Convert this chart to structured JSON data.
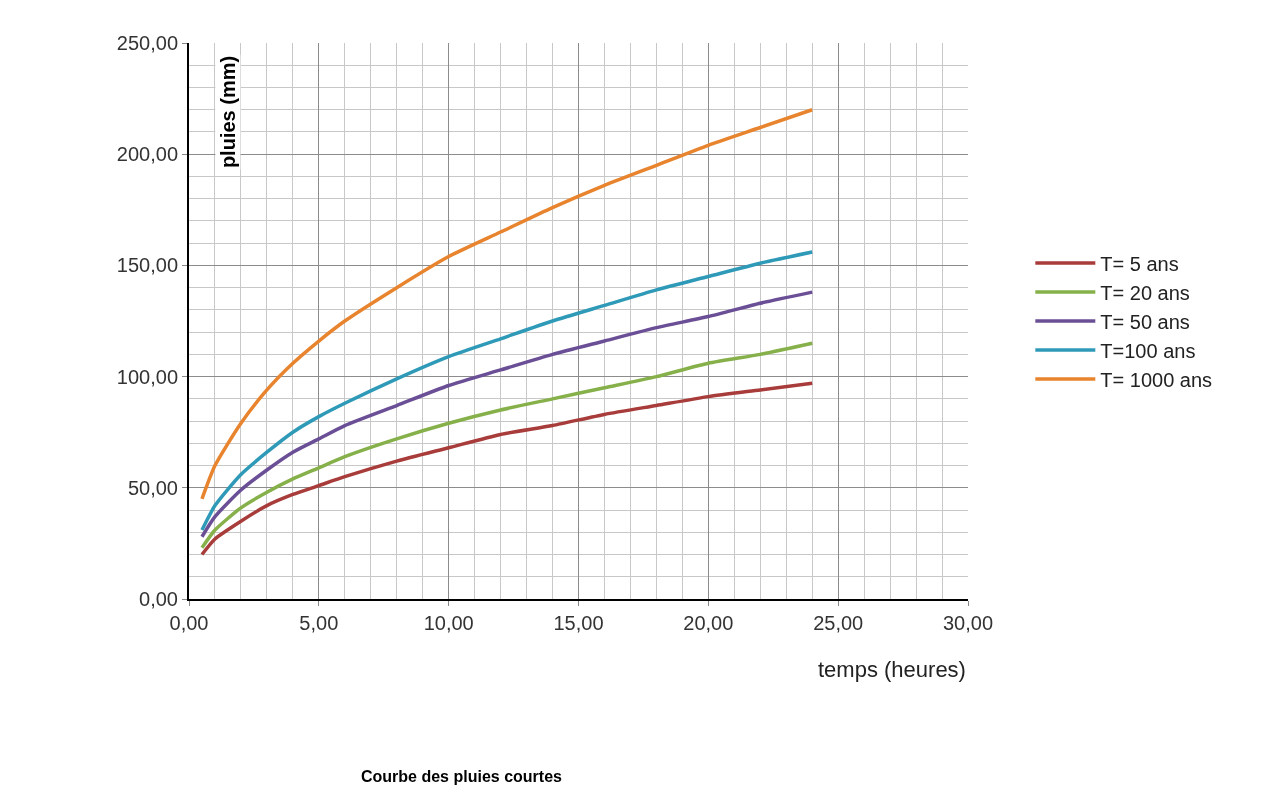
{
  "chart_data": {
    "type": "line",
    "title": "Courbe des pluies courtes",
    "xlabel": "temps (heures)",
    "ylabel": "pluies (mm)",
    "x": [
      0.5,
      1,
      2,
      3,
      4,
      5,
      6,
      8,
      10,
      12,
      14,
      16,
      18,
      20,
      22,
      24
    ],
    "series": [
      {
        "name": "T= 5 ans",
        "color": "#a83c3a",
        "values": [
          20,
          27,
          35,
          42,
          47,
          51,
          55,
          62,
          68,
          74,
          78,
          83,
          87,
          91,
          94,
          97
        ]
      },
      {
        "name": "T= 20 ans",
        "color": "#86b04a",
        "values": [
          23,
          31,
          41,
          48,
          54,
          59,
          64,
          72,
          79,
          85,
          90,
          95,
          100,
          106,
          110,
          115
        ]
      },
      {
        "name": "T= 50 ans",
        "color": "#6b4f96",
        "values": [
          28,
          37,
          49,
          58,
          66,
          72,
          78,
          87,
          96,
          103,
          110,
          116,
          122,
          127,
          133,
          138
        ]
      },
      {
        "name": "T=100 ans",
        "color": "#2f9ab8",
        "values": [
          31,
          42,
          56,
          66,
          75,
          82,
          88,
          99,
          109,
          117,
          125,
          132,
          139,
          145,
          151,
          156
        ]
      },
      {
        "name": "T= 1000 ans",
        "color": "#e8842e",
        "values": [
          45,
          60,
          79,
          94,
          106,
          116,
          125,
          140,
          154,
          165,
          176,
          186,
          195,
          204,
          212,
          220
        ]
      }
    ],
    "xlim": [
      0,
      30
    ],
    "xticks": [
      {
        "value": 0,
        "label": "0,00"
      },
      {
        "value": 5,
        "label": "5,00"
      },
      {
        "value": 10,
        "label": "10,00"
      },
      {
        "value": 15,
        "label": "15,00"
      },
      {
        "value": 20,
        "label": "20,00"
      },
      {
        "value": 25,
        "label": "25,00"
      },
      {
        "value": 30,
        "label": "30,00"
      }
    ],
    "ylim": [
      0,
      250
    ],
    "yticks": [
      {
        "value": 0,
        "label": "0,00"
      },
      {
        "value": 50,
        "label": "50,00"
      },
      {
        "value": 100,
        "label": "100,00"
      },
      {
        "value": 150,
        "label": "150,00"
      },
      {
        "value": 200,
        "label": "200,00"
      },
      {
        "value": 250,
        "label": "250,00"
      }
    ],
    "grid": true,
    "legend": "right",
    "marker": "none",
    "line_style": "solid"
  }
}
